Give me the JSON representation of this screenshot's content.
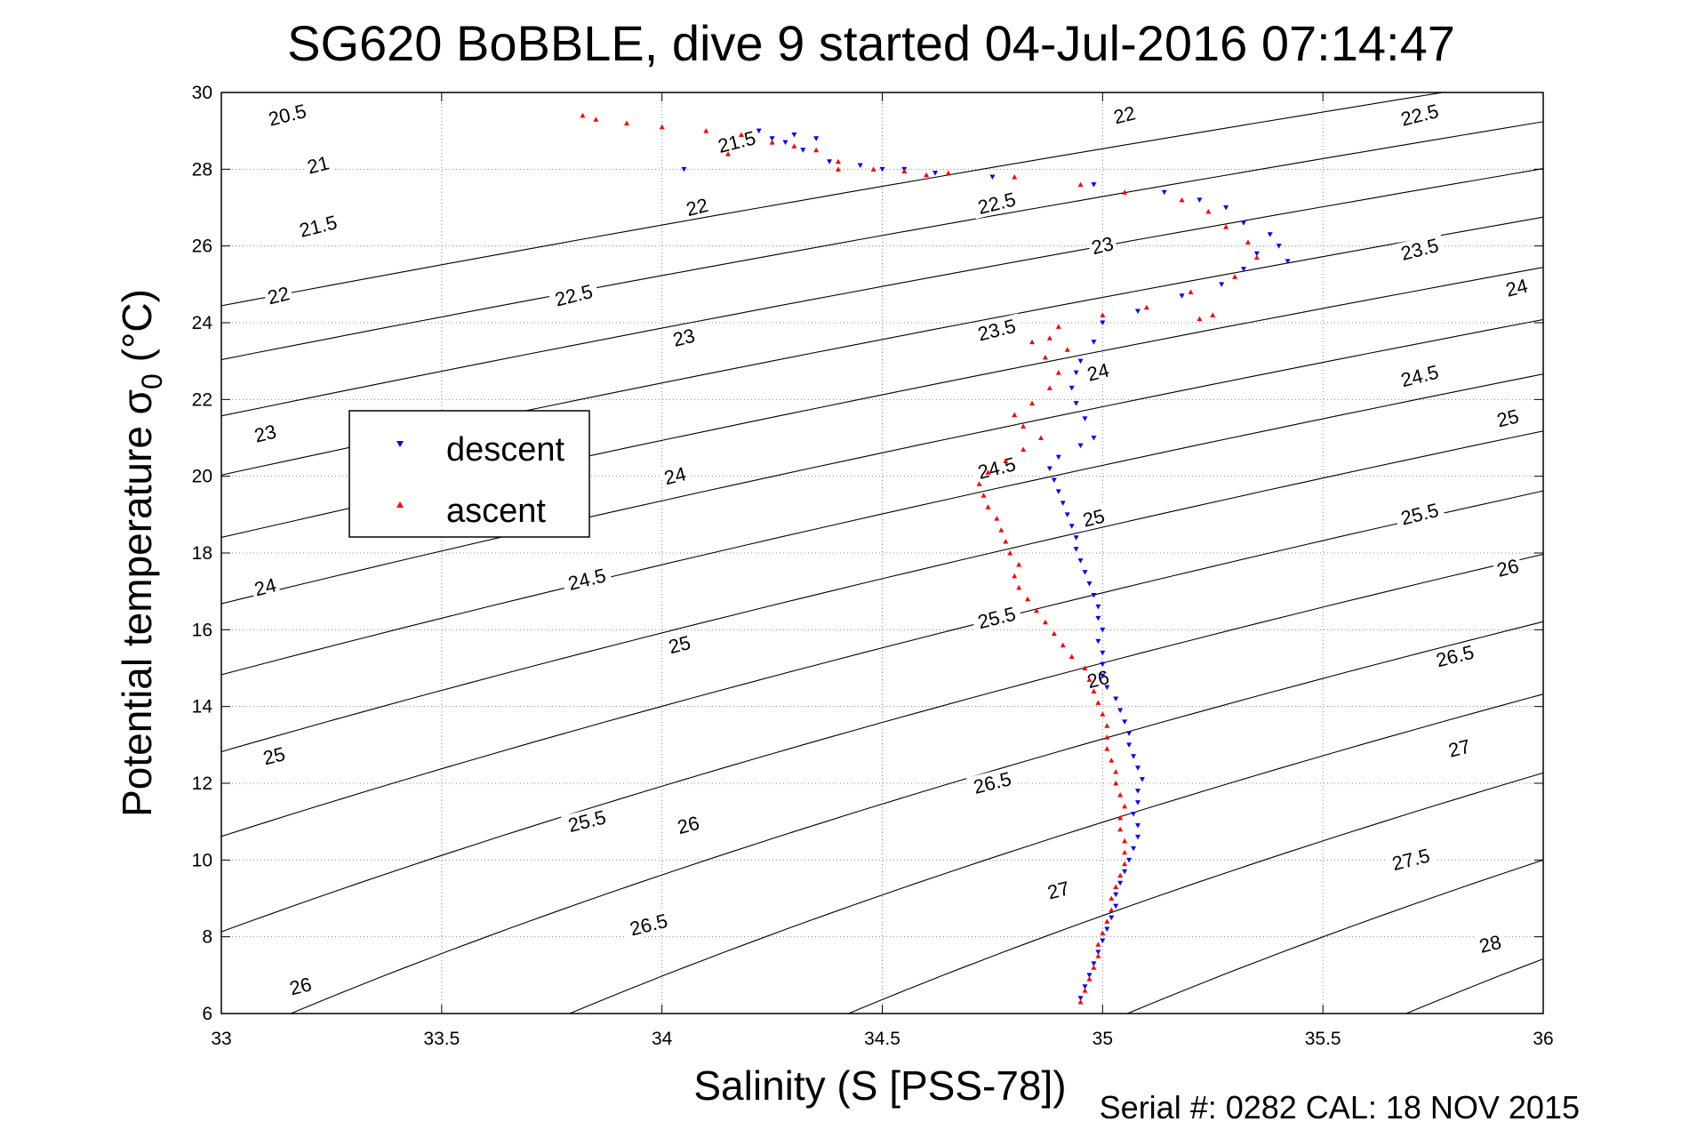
{
  "chart_data": {
    "type": "scatter",
    "title": "SG620 BoBBLE, dive 9 started 04-Jul-2016 07:14:47",
    "xlabel": "Salinity (S [PSS-78])",
    "ylabel_main": "Potential temperature σ",
    "ylabel_sub": "0",
    "ylabel_unit": " (°C)",
    "footer": "Serial #: 0282  CAL: 18 NOV 2015",
    "xlim": [
      33,
      36
    ],
    "ylim": [
      6,
      30
    ],
    "grid": true,
    "legend_position": "upper-left",
    "x_ticks": [
      33,
      33.5,
      34,
      34.5,
      35,
      35.5,
      36
    ],
    "x_tick_labels": [
      "33",
      "33.5",
      "34",
      "34.5",
      "35",
      "35.5",
      "36"
    ],
    "y_ticks": [
      6,
      8,
      10,
      12,
      14,
      16,
      18,
      20,
      22,
      24,
      26,
      28,
      30
    ],
    "y_tick_labels": [
      "6",
      "8",
      "10",
      "12",
      "14",
      "16",
      "18",
      "20",
      "22",
      "24",
      "26",
      "28",
      "30"
    ],
    "contour_levels": [
      20.5,
      21,
      21.5,
      22,
      22.5,
      23,
      23.5,
      24,
      24.5,
      25,
      25.5,
      26,
      26.5,
      27,
      27.5,
      28
    ],
    "contour_labels": [
      {
        "text": "20.5",
        "x": 33.15,
        "y": 29.4
      },
      {
        "text": "21",
        "x": 33.22,
        "y": 28.1
      },
      {
        "text": "21.5",
        "x": 33.22,
        "y": 26.5
      },
      {
        "text": "22",
        "x": 33.13,
        "y": 24.7
      },
      {
        "text": "23",
        "x": 33.1,
        "y": 21.1
      },
      {
        "text": "24",
        "x": 33.1,
        "y": 17.1
      },
      {
        "text": "25",
        "x": 33.12,
        "y": 12.7
      },
      {
        "text": "26",
        "x": 33.18,
        "y": 6.7
      },
      {
        "text": "21.5",
        "x": 34.17,
        "y": 28.7
      },
      {
        "text": "22",
        "x": 34.08,
        "y": 27.0
      },
      {
        "text": "22.5",
        "x": 33.8,
        "y": 24.7
      },
      {
        "text": "23",
        "x": 34.05,
        "y": 23.6
      },
      {
        "text": "24",
        "x": 34.03,
        "y": 20.0
      },
      {
        "text": "24.5",
        "x": 33.83,
        "y": 17.3
      },
      {
        "text": "25",
        "x": 34.04,
        "y": 15.6
      },
      {
        "text": "25.5",
        "x": 33.83,
        "y": 11.0
      },
      {
        "text": "26",
        "x": 34.06,
        "y": 10.9
      },
      {
        "text": "26.5",
        "x": 33.97,
        "y": 8.3
      },
      {
        "text": "22",
        "x": 35.05,
        "y": 29.4
      },
      {
        "text": "22.5",
        "x": 34.76,
        "y": 27.1
      },
      {
        "text": "23",
        "x": 35.0,
        "y": 26.0
      },
      {
        "text": "23.5",
        "x": 34.76,
        "y": 23.8
      },
      {
        "text": "24",
        "x": 34.99,
        "y": 22.7
      },
      {
        "text": "24.5",
        "x": 34.76,
        "y": 20.2
      },
      {
        "text": "25",
        "x": 34.98,
        "y": 18.9
      },
      {
        "text": "25.5",
        "x": 34.76,
        "y": 16.3
      },
      {
        "text": "26",
        "x": 34.99,
        "y": 14.7
      },
      {
        "text": "26.5",
        "x": 34.75,
        "y": 12.0
      },
      {
        "text": "27",
        "x": 34.9,
        "y": 9.2
      },
      {
        "text": "22.5",
        "x": 35.72,
        "y": 29.4
      },
      {
        "text": "23.5",
        "x": 35.72,
        "y": 25.9
      },
      {
        "text": "24",
        "x": 35.94,
        "y": 24.9
      },
      {
        "text": "24.5",
        "x": 35.72,
        "y": 22.6
      },
      {
        "text": "25",
        "x": 35.92,
        "y": 21.5
      },
      {
        "text": "25.5",
        "x": 35.72,
        "y": 19.0
      },
      {
        "text": "26",
        "x": 35.92,
        "y": 17.6
      },
      {
        "text": "26.5",
        "x": 35.8,
        "y": 15.3
      },
      {
        "text": "27",
        "x": 35.81,
        "y": 12.9
      },
      {
        "text": "27.5",
        "x": 35.7,
        "y": 10.0
      },
      {
        "text": "28",
        "x": 35.88,
        "y": 7.8
      }
    ],
    "series": [
      {
        "name": "descent",
        "color": "#0000ff",
        "marker": "triangle-down",
        "points": [
          [
            34.95,
            6.4
          ],
          [
            34.96,
            6.7
          ],
          [
            34.97,
            7.0
          ],
          [
            34.98,
            7.3
          ],
          [
            34.99,
            7.6
          ],
          [
            35.0,
            7.9
          ],
          [
            35.01,
            8.2
          ],
          [
            35.02,
            8.5
          ],
          [
            35.03,
            8.8
          ],
          [
            35.03,
            9.1
          ],
          [
            35.04,
            9.4
          ],
          [
            35.05,
            9.7
          ],
          [
            35.06,
            10.0
          ],
          [
            35.07,
            10.3
          ],
          [
            35.08,
            10.6
          ],
          [
            35.08,
            10.9
          ],
          [
            35.07,
            11.2
          ],
          [
            35.08,
            11.5
          ],
          [
            35.08,
            11.8
          ],
          [
            35.09,
            12.1
          ],
          [
            35.08,
            12.4
          ],
          [
            35.07,
            12.7
          ],
          [
            35.06,
            13.0
          ],
          [
            35.06,
            13.3
          ],
          [
            35.05,
            13.6
          ],
          [
            35.04,
            13.9
          ],
          [
            35.03,
            14.2
          ],
          [
            35.01,
            14.5
          ],
          [
            35.0,
            14.8
          ],
          [
            35.0,
            15.1
          ],
          [
            35.0,
            15.4
          ],
          [
            34.99,
            15.7
          ],
          [
            35.0,
            16.0
          ],
          [
            34.99,
            16.3
          ],
          [
            34.99,
            16.6
          ],
          [
            34.98,
            16.9
          ],
          [
            34.97,
            17.2
          ],
          [
            34.96,
            17.5
          ],
          [
            34.95,
            17.8
          ],
          [
            34.94,
            18.1
          ],
          [
            34.94,
            18.4
          ],
          [
            34.93,
            18.7
          ],
          [
            34.92,
            19.0
          ],
          [
            34.91,
            19.3
          ],
          [
            34.9,
            19.6
          ],
          [
            34.89,
            19.9
          ],
          [
            34.88,
            20.2
          ],
          [
            34.9,
            20.5
          ],
          [
            34.95,
            20.8
          ],
          [
            34.98,
            21.0
          ],
          [
            34.96,
            21.5
          ],
          [
            34.94,
            21.9
          ],
          [
            34.93,
            22.3
          ],
          [
            34.94,
            22.7
          ],
          [
            34.95,
            23.0
          ],
          [
            34.98,
            23.5
          ],
          [
            35.0,
            24.0
          ],
          [
            35.08,
            24.3
          ],
          [
            35.18,
            24.7
          ],
          [
            35.27,
            25.0
          ],
          [
            35.32,
            25.4
          ],
          [
            35.35,
            25.8
          ],
          [
            35.4,
            26.0
          ],
          [
            35.42,
            25.6
          ],
          [
            35.38,
            26.3
          ],
          [
            35.32,
            26.6
          ],
          [
            35.28,
            27.0
          ],
          [
            35.22,
            27.2
          ],
          [
            35.14,
            27.4
          ],
          [
            34.98,
            27.6
          ],
          [
            34.75,
            27.8
          ],
          [
            34.62,
            27.9
          ],
          [
            34.55,
            28.0
          ],
          [
            34.5,
            28.0
          ],
          [
            34.45,
            28.1
          ],
          [
            34.38,
            28.2
          ],
          [
            34.32,
            28.5
          ],
          [
            34.28,
            28.7
          ],
          [
            34.25,
            28.8
          ],
          [
            34.22,
            29.0
          ],
          [
            34.3,
            28.9
          ],
          [
            34.35,
            28.8
          ],
          [
            34.05,
            28.0
          ]
        ]
      },
      {
        "name": "ascent",
        "color": "#ff0000",
        "marker": "triangle-up",
        "points": [
          [
            34.95,
            6.3
          ],
          [
            34.96,
            6.6
          ],
          [
            34.97,
            6.9
          ],
          [
            34.98,
            7.2
          ],
          [
            34.99,
            7.5
          ],
          [
            34.99,
            7.8
          ],
          [
            35.0,
            8.1
          ],
          [
            35.01,
            8.4
          ],
          [
            35.02,
            8.7
          ],
          [
            35.02,
            9.0
          ],
          [
            35.03,
            9.3
          ],
          [
            35.04,
            9.6
          ],
          [
            35.05,
            9.9
          ],
          [
            35.05,
            10.2
          ],
          [
            35.05,
            10.5
          ],
          [
            35.04,
            10.8
          ],
          [
            35.04,
            11.1
          ],
          [
            35.05,
            11.4
          ],
          [
            35.04,
            11.7
          ],
          [
            35.03,
            12.0
          ],
          [
            35.03,
            12.3
          ],
          [
            35.02,
            12.6
          ],
          [
            35.01,
            12.9
          ],
          [
            35.01,
            13.2
          ],
          [
            35.01,
            13.5
          ],
          [
            35.0,
            13.8
          ],
          [
            34.99,
            14.1
          ],
          [
            34.98,
            14.4
          ],
          [
            34.97,
            14.7
          ],
          [
            34.96,
            15.0
          ],
          [
            34.93,
            15.3
          ],
          [
            34.91,
            15.6
          ],
          [
            34.89,
            15.9
          ],
          [
            34.87,
            16.2
          ],
          [
            34.85,
            16.5
          ],
          [
            34.83,
            16.8
          ],
          [
            34.81,
            17.1
          ],
          [
            34.8,
            17.4
          ],
          [
            34.81,
            17.7
          ],
          [
            34.79,
            18.0
          ],
          [
            34.78,
            18.3
          ],
          [
            34.77,
            18.6
          ],
          [
            34.76,
            18.9
          ],
          [
            34.74,
            19.2
          ],
          [
            34.73,
            19.5
          ],
          [
            34.72,
            19.8
          ],
          [
            34.74,
            20.1
          ],
          [
            34.78,
            20.4
          ],
          [
            34.82,
            20.7
          ],
          [
            34.86,
            21.0
          ],
          [
            34.82,
            21.3
          ],
          [
            34.8,
            21.6
          ],
          [
            34.84,
            21.9
          ],
          [
            34.88,
            22.3
          ],
          [
            34.9,
            22.7
          ],
          [
            34.87,
            23.1
          ],
          [
            34.84,
            23.5
          ],
          [
            34.9,
            23.9
          ],
          [
            35.0,
            24.2
          ],
          [
            35.1,
            24.4
          ],
          [
            35.2,
            24.8
          ],
          [
            35.3,
            25.2
          ],
          [
            35.35,
            25.7
          ],
          [
            35.33,
            26.1
          ],
          [
            35.28,
            26.5
          ],
          [
            35.24,
            26.9
          ],
          [
            35.18,
            27.2
          ],
          [
            35.05,
            27.4
          ],
          [
            34.95,
            27.6
          ],
          [
            34.8,
            27.8
          ],
          [
            34.65,
            27.9
          ],
          [
            34.55,
            27.95
          ],
          [
            34.48,
            28.0
          ],
          [
            34.4,
            28.2
          ],
          [
            34.35,
            28.5
          ],
          [
            34.3,
            28.6
          ],
          [
            34.25,
            28.7
          ],
          [
            34.18,
            28.9
          ],
          [
            34.1,
            29.0
          ],
          [
            34.0,
            29.1
          ],
          [
            33.92,
            29.2
          ],
          [
            33.85,
            29.3
          ],
          [
            33.82,
            29.4
          ],
          [
            34.15,
            28.4
          ],
          [
            34.4,
            28.0
          ],
          [
            34.6,
            27.85
          ],
          [
            35.22,
            24.1
          ],
          [
            35.25,
            24.2
          ],
          [
            34.88,
            23.6
          ],
          [
            34.92,
            23.3
          ]
        ]
      }
    ]
  }
}
